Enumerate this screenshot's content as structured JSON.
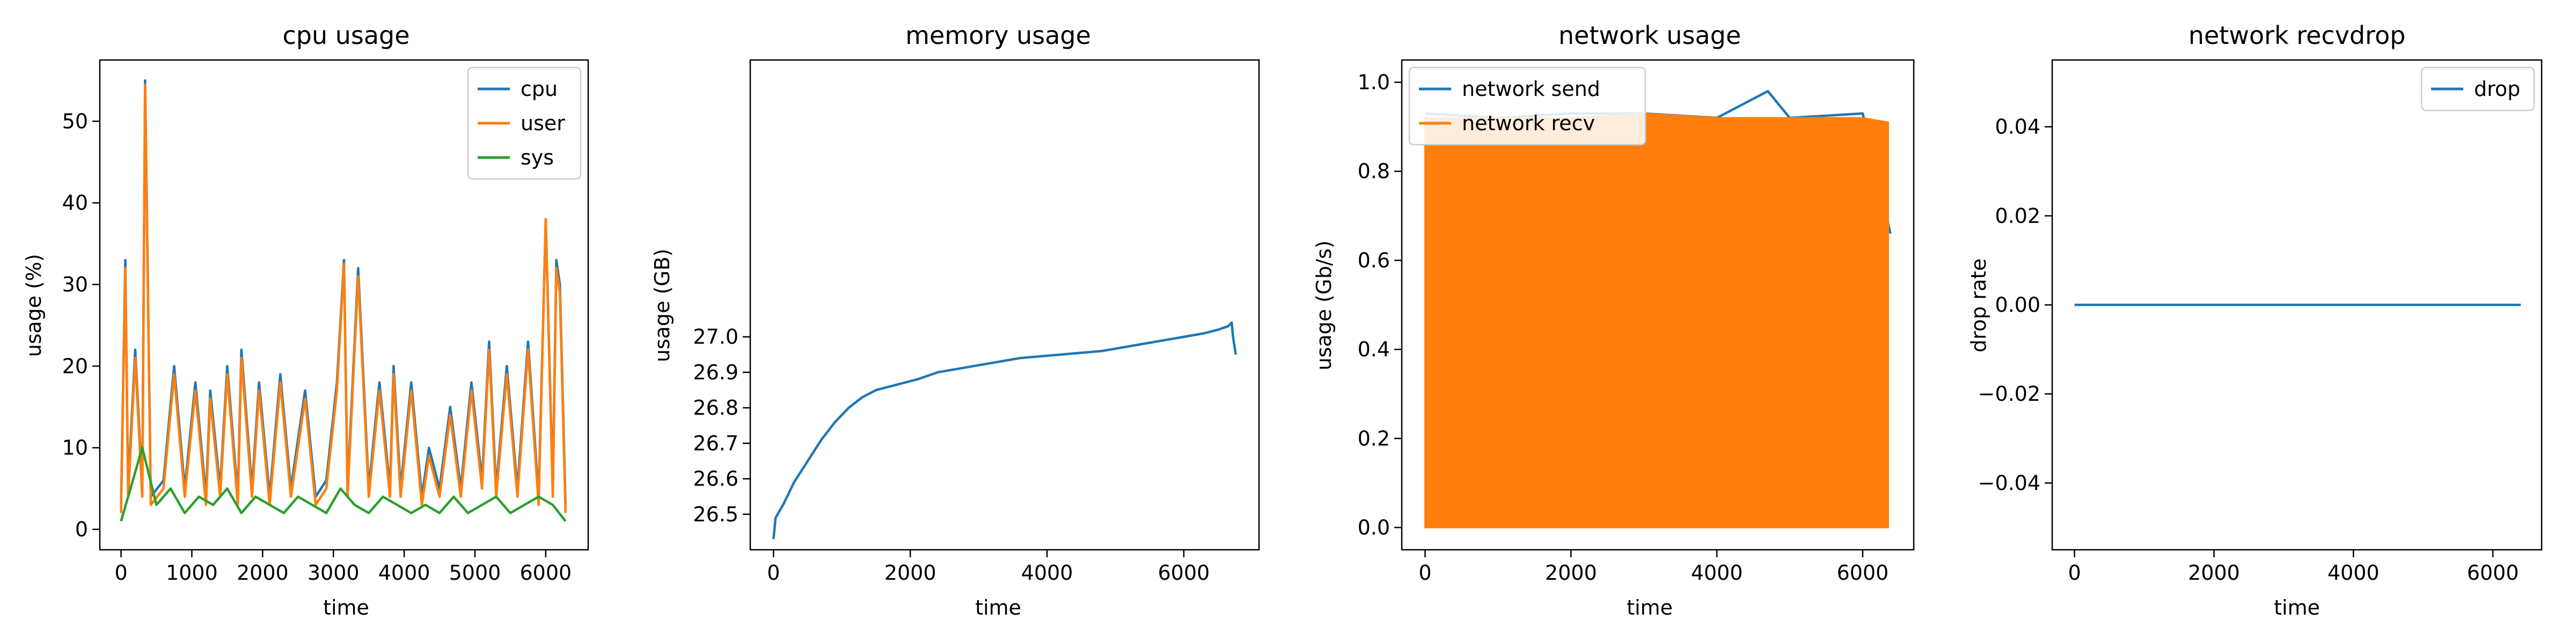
{
  "chart_data": [
    {
      "type": "line",
      "title": "cpu usage",
      "xlabel": "time",
      "ylabel": "usage (%)",
      "xlim": [
        -300,
        6600
      ],
      "ylim": [
        -2.5,
        57.5
      ],
      "xticks": [
        0,
        1000,
        2000,
        3000,
        4000,
        5000,
        6000
      ],
      "yticks": [
        0,
        10,
        20,
        30,
        40,
        50
      ],
      "legend_loc": "upper right",
      "colors": {
        "cpu": "#1f77b4",
        "user": "#ff7f0e",
        "sys": "#2ca02c"
      },
      "series": [
        {
          "name": "cpu",
          "x": [
            0,
            60,
            100,
            200,
            300,
            340,
            420,
            600,
            750,
            900,
            1050,
            1200,
            1260,
            1400,
            1500,
            1650,
            1700,
            1850,
            1950,
            2100,
            2250,
            2400,
            2600,
            2750,
            2900,
            3050,
            3150,
            3200,
            3350,
            3500,
            3650,
            3800,
            3850,
            3950,
            4100,
            4250,
            4350,
            4500,
            4650,
            4800,
            4950,
            5100,
            5200,
            5300,
            5450,
            5600,
            5750,
            5900,
            6000,
            6100,
            6150,
            6200,
            6280
          ],
          "y": [
            3,
            33,
            5,
            22,
            5,
            55,
            4,
            6,
            20,
            5,
            18,
            4,
            17,
            5,
            20,
            4,
            22,
            5,
            18,
            4,
            19,
            5,
            17,
            4,
            6,
            18,
            33,
            5,
            32,
            5,
            18,
            5,
            20,
            5,
            18,
            4,
            10,
            5,
            15,
            5,
            18,
            6,
            23,
            5,
            20,
            5,
            23,
            4,
            38,
            5,
            33,
            30,
            3
          ]
        },
        {
          "name": "user",
          "x": [
            0,
            60,
            100,
            200,
            300,
            340,
            420,
            600,
            750,
            900,
            1050,
            1200,
            1260,
            1400,
            1500,
            1650,
            1700,
            1850,
            1950,
            2100,
            2250,
            2400,
            2600,
            2750,
            2900,
            3050,
            3150,
            3200,
            3350,
            3500,
            3650,
            3800,
            3850,
            3950,
            4100,
            4250,
            4350,
            4500,
            4650,
            4800,
            4950,
            5100,
            5200,
            5300,
            5450,
            5600,
            5750,
            5900,
            6000,
            6100,
            6150,
            6200,
            6280
          ],
          "y": [
            2,
            32,
            4,
            21,
            4,
            54.5,
            3,
            5,
            19,
            4,
            17,
            3,
            16,
            4,
            19,
            3,
            21,
            4,
            17,
            3,
            18,
            4,
            16,
            3,
            5,
            17,
            32.5,
            4,
            31,
            4,
            17,
            4,
            19,
            4,
            17,
            3,
            9,
            4,
            14,
            4,
            17,
            5,
            22,
            4,
            19,
            4,
            22,
            3,
            38,
            4,
            32,
            29,
            2
          ]
        },
        {
          "name": "sys",
          "x": [
            0,
            100,
            300,
            500,
            700,
            900,
            1100,
            1300,
            1500,
            1700,
            1900,
            2100,
            2300,
            2500,
            2700,
            2900,
            3100,
            3300,
            3500,
            3700,
            3900,
            4100,
            4300,
            4500,
            4700,
            4900,
            5100,
            5300,
            5500,
            5700,
            5900,
            6100,
            6280
          ],
          "y": [
            1,
            4,
            10,
            3,
            5,
            2,
            4,
            3,
            5,
            2,
            4,
            3,
            2,
            4,
            3,
            2,
            5,
            3,
            2,
            4,
            3,
            2,
            3,
            2,
            4,
            2,
            3,
            4,
            2,
            3,
            4,
            3,
            1
          ]
        }
      ]
    },
    {
      "type": "line",
      "title": "memory usage",
      "xlabel": "time",
      "ylabel": "usage (GB)",
      "xlim": [
        -340,
        7100
      ],
      "ylim": [
        26.4,
        27.78
      ],
      "xticks": [
        0,
        2000,
        4000,
        6000
      ],
      "yticks": [
        26.5,
        26.6,
        26.7,
        26.8,
        26.9,
        27.0
      ],
      "tick_labels": [
        "26.5",
        "26.6",
        "26.7",
        "26.8",
        "26.9",
        "27.0"
      ],
      "colors": {
        "memory": "#1f77b4"
      },
      "series": [
        {
          "x": [
            0,
            30,
            150,
            300,
            500,
            700,
            900,
            1100,
            1300,
            1500,
            1700,
            1900,
            2100,
            2400,
            2700,
            3000,
            3300,
            3600,
            3900,
            4200,
            4500,
            4800,
            5100,
            5400,
            5700,
            6000,
            6300,
            6500,
            6650,
            6700,
            6720,
            6760
          ],
          "y": [
            26.43,
            26.49,
            26.53,
            26.59,
            26.65,
            26.71,
            26.76,
            26.8,
            26.83,
            26.85,
            26.86,
            26.87,
            26.88,
            26.9,
            26.91,
            26.92,
            26.93,
            26.94,
            26.945,
            26.95,
            26.955,
            26.96,
            26.97,
            26.98,
            26.99,
            27.0,
            27.01,
            27.02,
            27.03,
            27.04,
            27.0,
            26.95
          ]
        }
      ]
    },
    {
      "type": "line",
      "title": "network usage",
      "xlabel": "time",
      "ylabel": "usage (Gb/s)",
      "xlim": [
        -320,
        6700
      ],
      "ylim": [
        -0.05,
        1.05
      ],
      "xticks": [
        0,
        2000,
        4000,
        6000
      ],
      "yticks": [
        0.0,
        0.2,
        0.4,
        0.6,
        0.8,
        1.0
      ],
      "tick_labels": [
        "0.0",
        "0.2",
        "0.4",
        "0.6",
        "0.8",
        "1.0"
      ],
      "legend_loc": "upper left",
      "colors": {
        "network send": "#1f77b4",
        "network recv": "#ff7f0e"
      },
      "series": [
        {
          "name": "network send",
          "x": [
            0,
            1000,
            2000,
            3000,
            4000,
            4700,
            5000,
            6000,
            6380
          ],
          "y": [
            0.93,
            0.92,
            0.93,
            0.93,
            0.92,
            0.98,
            0.92,
            0.93,
            0.66
          ]
        },
        {
          "name": "network recv",
          "x": [
            0,
            1000,
            2000,
            3000,
            4000,
            5000,
            6000,
            6350
          ],
          "y": [
            0.92,
            0.92,
            0.92,
            0.93,
            0.92,
            0.92,
            0.92,
            0.91
          ],
          "fill_to": 0
        }
      ]
    },
    {
      "type": "line",
      "title": "network recvdrop",
      "xlabel": "time",
      "ylabel": "drop rate",
      "xlim": [
        -320,
        6700
      ],
      "ylim": [
        -0.055,
        0.055
      ],
      "xticks": [
        0,
        2000,
        4000,
        6000
      ],
      "yticks": [
        -0.04,
        -0.02,
        0.0,
        0.02,
        0.04
      ],
      "tick_labels": [
        "−0.04",
        "−0.02",
        "0.00",
        "0.02",
        "0.04"
      ],
      "legend_loc": "upper right",
      "colors": {
        "drop": "#1f77b4"
      },
      "series": [
        {
          "name": "drop",
          "x": [
            0,
            6400
          ],
          "y": [
            0,
            0
          ]
        }
      ]
    }
  ]
}
